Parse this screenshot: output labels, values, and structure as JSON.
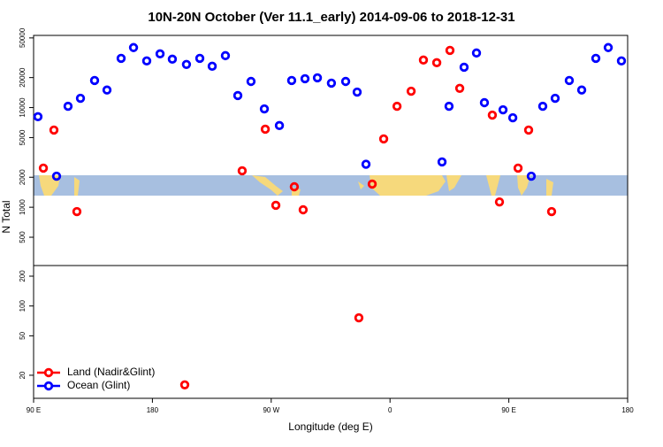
{
  "chart_data": [
    {
      "type": "scatter",
      "title": "10N-20N October (Ver 11.1_early)   2014-09-06 to 2018-12-31",
      "y_label": "N Total",
      "log_y": true,
      "xlim": [
        90,
        540
      ],
      "ylim": [
        260,
        53000
      ],
      "yticks": [
        500,
        1000,
        2000,
        5000,
        10000,
        20000,
        50000
      ],
      "series": [
        {
          "color": "#ff0000",
          "x": [
            97.4,
            105.4,
            122.8,
            248,
            265.5,
            273.5,
            287.5,
            294.2,
            346.5,
            355.2,
            365.3,
            376,
            385.3,
            395.4,
            405.4,
            412.8,
            437.5,
            442.9,
            457,
            465,
            482.4
          ],
          "values": [
            2470,
            5950,
            905,
            2320,
            6070,
            1045,
            1605,
            943,
            1707,
            4850,
            10300,
            14600,
            30000,
            28200,
            37500,
            15600,
            8400,
            1130,
            2470,
            5950,
            905
          ]
        },
        {
          "color": "#0000ff",
          "x": [
            93.3,
            107.4,
            116.1,
            125.5,
            136.2,
            145.6,
            156.3,
            165.7,
            175.7,
            185.8,
            195.1,
            205.8,
            215.9,
            225.3,
            235.3,
            244.7,
            254.7,
            264.8,
            276.2,
            285.5,
            295.6,
            305,
            315.6,
            326.4,
            335.1,
            341.8,
            399.4,
            404.7,
            416.1,
            425.5,
            431.5,
            445.6,
            453,
            467,
            475.7,
            485.1,
            495.8,
            505.2,
            515.9,
            525.3,
            535.3
          ],
          "values": [
            8100,
            2050,
            10300,
            12400,
            18700,
            15000,
            31200,
            40000,
            29400,
            34600,
            30600,
            27100,
            31200,
            26000,
            33200,
            13200,
            18300,
            9700,
            6600,
            18700,
            19500,
            19900,
            17600,
            18300,
            14300,
            2700,
            2850,
            10300,
            25400,
            35300,
            11200,
            9500,
            7900,
            2050,
            10300,
            12400,
            18700,
            15000,
            31200,
            40000,
            29400
          ]
        }
      ]
    },
    {
      "type": "scatter",
      "x_label": "Longitude (deg E)",
      "log_y": true,
      "xlim": [
        90,
        540
      ],
      "ylim": [
        11.7,
        256
      ],
      "yticks": [
        20,
        50,
        100,
        200
      ],
      "xticks": [
        {
          "value": 90,
          "label": "90 E"
        },
        {
          "value": 180,
          "label": "180"
        },
        {
          "value": 270,
          "label": "90 W"
        },
        {
          "value": 360,
          "label": "0"
        },
        {
          "value": 450,
          "label": "90 E"
        },
        {
          "value": 540,
          "label": "180"
        }
      ],
      "legend": "bottomleft",
      "series": [
        {
          "name": "Land (Nadir&Glint)",
          "color": "#ff0000",
          "x": [
            336.4,
            204.5
          ],
          "values": [
            76,
            16
          ]
        },
        {
          "name": "Ocean (Glint)",
          "color": "#0000ff",
          "x": [],
          "values": []
        }
      ]
    }
  ]
}
